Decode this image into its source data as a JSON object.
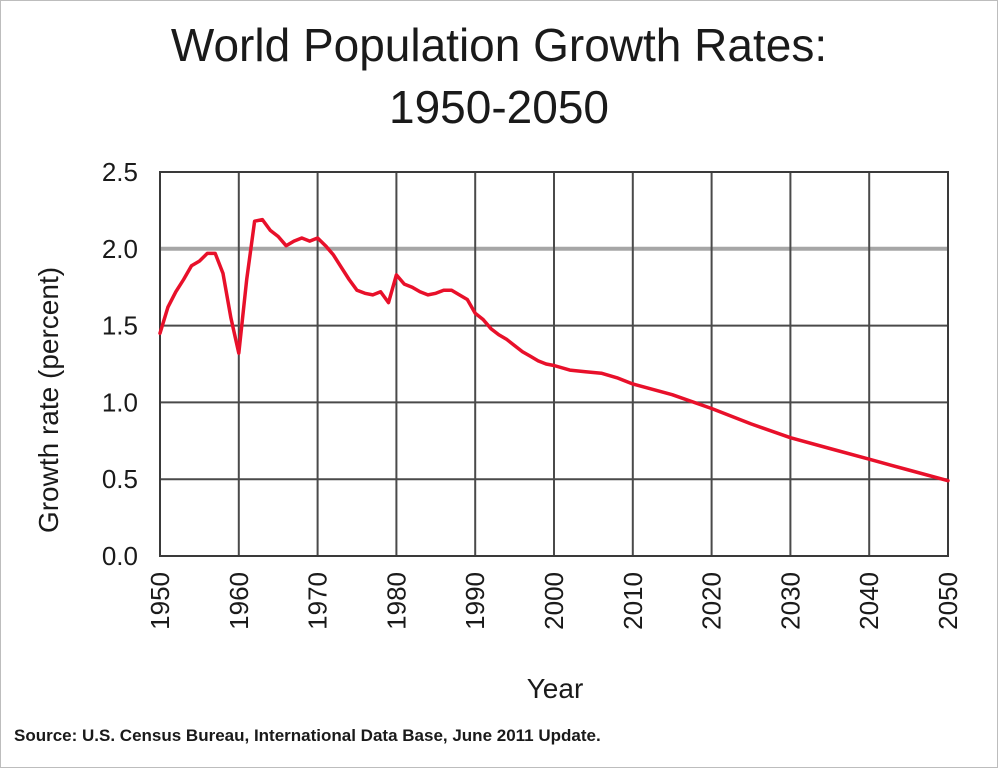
{
  "chart_data": {
    "type": "line",
    "title": [
      "World Population Growth Rates:",
      "1950-2050"
    ],
    "xlabel": "Year",
    "ylabel": "Growth rate  (percent)",
    "xlim": [
      1950,
      2050
    ],
    "ylim": [
      0,
      2.5
    ],
    "x_ticks": [
      "1950",
      "1960",
      "1970",
      "1980",
      "1990",
      "2000",
      "2010",
      "2020",
      "2030",
      "2040",
      "2050"
    ],
    "y_ticks": [
      "0.0",
      "0.5",
      "1.0",
      "1.5",
      "2.0",
      "2.5"
    ],
    "grid": true,
    "series": [
      {
        "color": "#e8102a",
        "points": [
          [
            1950,
            1.45
          ],
          [
            1951,
            1.62
          ],
          [
            1952,
            1.72
          ],
          [
            1953,
            1.8
          ],
          [
            1954,
            1.89
          ],
          [
            1955,
            1.92
          ],
          [
            1956,
            1.97
          ],
          [
            1957,
            1.97
          ],
          [
            1958,
            1.84
          ],
          [
            1959,
            1.55
          ],
          [
            1960,
            1.32
          ],
          [
            1961,
            1.8
          ],
          [
            1962,
            2.18
          ],
          [
            1963,
            2.19
          ],
          [
            1964,
            2.12
          ],
          [
            1965,
            2.08
          ],
          [
            1966,
            2.02
          ],
          [
            1967,
            2.05
          ],
          [
            1968,
            2.07
          ],
          [
            1969,
            2.05
          ],
          [
            1970,
            2.07
          ],
          [
            1971,
            2.02
          ],
          [
            1972,
            1.96
          ],
          [
            1973,
            1.88
          ],
          [
            1974,
            1.8
          ],
          [
            1975,
            1.73
          ],
          [
            1976,
            1.71
          ],
          [
            1977,
            1.7
          ],
          [
            1978,
            1.72
          ],
          [
            1979,
            1.65
          ],
          [
            1980,
            1.83
          ],
          [
            1981,
            1.77
          ],
          [
            1982,
            1.75
          ],
          [
            1983,
            1.72
          ],
          [
            1984,
            1.7
          ],
          [
            1985,
            1.71
          ],
          [
            1986,
            1.73
          ],
          [
            1987,
            1.73
          ],
          [
            1988,
            1.7
          ],
          [
            1989,
            1.67
          ],
          [
            1990,
            1.58
          ],
          [
            1991,
            1.54
          ],
          [
            1992,
            1.48
          ],
          [
            1993,
            1.44
          ],
          [
            1994,
            1.41
          ],
          [
            1995,
            1.37
          ],
          [
            1996,
            1.33
          ],
          [
            1997,
            1.3
          ],
          [
            1998,
            1.27
          ],
          [
            1999,
            1.25
          ],
          [
            2000,
            1.24
          ],
          [
            2002,
            1.21
          ],
          [
            2004,
            1.2
          ],
          [
            2006,
            1.19
          ],
          [
            2008,
            1.16
          ],
          [
            2010,
            1.12
          ],
          [
            2015,
            1.05
          ],
          [
            2020,
            0.96
          ],
          [
            2025,
            0.86
          ],
          [
            2030,
            0.77
          ],
          [
            2035,
            0.7
          ],
          [
            2040,
            0.63
          ],
          [
            2045,
            0.56
          ],
          [
            2050,
            0.49
          ]
        ]
      }
    ]
  },
  "source_note": "Source: U.S. Census Bureau, International Data Base, June 2011 Update."
}
